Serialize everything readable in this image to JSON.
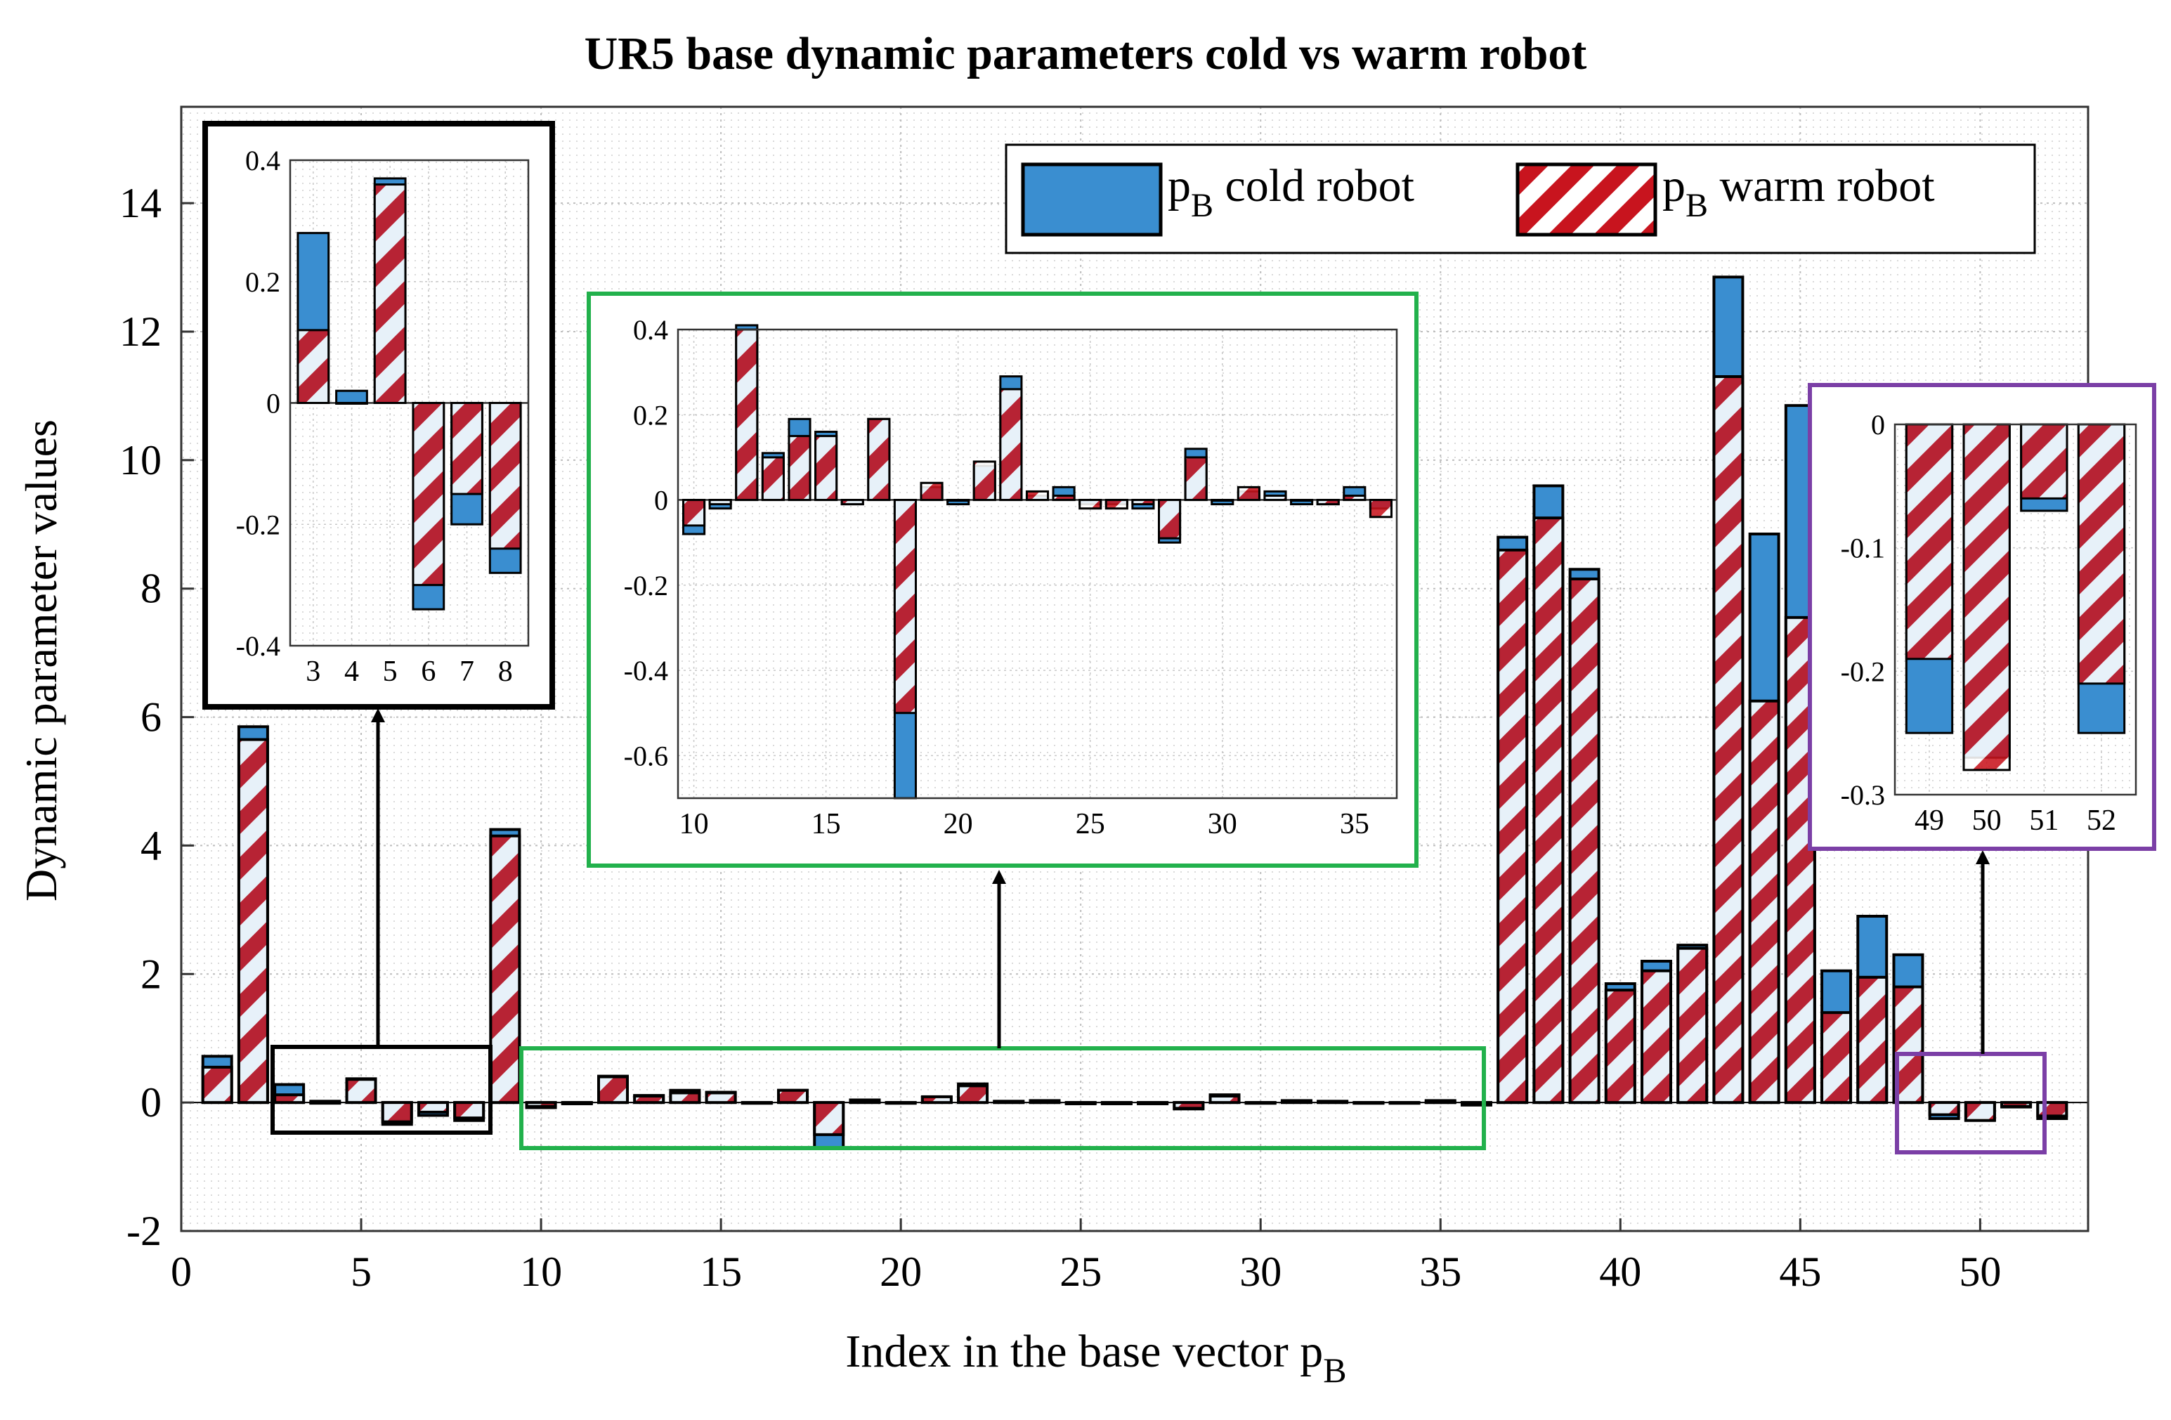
{
  "chart_data": {
    "type": "bar",
    "title": "UR5 base dynamic parameters cold vs warm robot",
    "xlabel": "Index in the base vector p",
    "xlabel_sub": "B",
    "ylabel": "Dynamic parameter values",
    "xlim": [
      0,
      53
    ],
    "ylim": [
      -2,
      15.5
    ],
    "xticks": [
      0,
      5,
      10,
      15,
      20,
      25,
      30,
      35,
      40,
      45,
      50
    ],
    "yticks": [
      -2,
      0,
      2,
      4,
      6,
      8,
      10,
      12,
      14
    ],
    "grid": true,
    "legend_position": "top-right",
    "colors": {
      "cold": "#3a8ed0",
      "warm_stripe": "#c8141e",
      "warm_bg": "#ffffff"
    },
    "x": [
      1,
      2,
      3,
      4,
      5,
      6,
      7,
      8,
      9,
      10,
      11,
      12,
      13,
      14,
      15,
      16,
      17,
      18,
      19,
      20,
      21,
      22,
      23,
      24,
      25,
      26,
      27,
      28,
      29,
      30,
      31,
      32,
      33,
      34,
      35,
      36,
      37,
      38,
      39,
      40,
      41,
      42,
      43,
      44,
      45,
      46,
      47,
      48,
      49,
      50,
      51,
      52
    ],
    "series": [
      {
        "name": "p",
        "name_sub": "B",
        "name_suffix": " cold robot",
        "values": [
          0.72,
          5.85,
          0.28,
          0.02,
          0.37,
          -0.34,
          -0.2,
          -0.28,
          4.25,
          -0.08,
          -0.02,
          0.41,
          0.11,
          0.19,
          0.16,
          -0.01,
          0.19,
          -0.7,
          0.03,
          -0.01,
          0.08,
          0.29,
          0.01,
          0.03,
          -0.01,
          -0.01,
          -0.02,
          -0.1,
          0.12,
          -0.01,
          0.02,
          0.02,
          -0.01,
          -0.01,
          0.03,
          -0.02,
          8.8,
          9.6,
          8.3,
          1.85,
          2.2,
          2.45,
          12.85,
          8.85,
          10.85,
          2.05,
          2.9,
          2.3,
          -0.25,
          -0.27,
          -0.07,
          -0.25
        ]
      },
      {
        "name": "p",
        "name_sub": "B",
        "name_suffix": " warm robot",
        "values": [
          0.55,
          5.65,
          0.12,
          0.0,
          0.36,
          -0.3,
          -0.15,
          -0.24,
          4.15,
          -0.06,
          -0.01,
          0.4,
          0.1,
          0.15,
          0.15,
          -0.01,
          0.19,
          -0.5,
          0.04,
          0.0,
          0.09,
          0.26,
          0.02,
          0.01,
          -0.02,
          -0.02,
          -0.01,
          -0.09,
          0.1,
          0.0,
          0.03,
          0.01,
          0.0,
          -0.01,
          0.01,
          -0.04,
          8.6,
          9.1,
          8.15,
          1.75,
          2.05,
          2.4,
          11.3,
          6.25,
          7.55,
          1.4,
          1.95,
          1.8,
          -0.19,
          -0.28,
          -0.06,
          -0.21
        ]
      }
    ],
    "insets": [
      {
        "x_range": [
          3,
          8
        ],
        "xticks": [
          3,
          4,
          5,
          6,
          7,
          8
        ],
        "ylim": [
          -0.4,
          0.4
        ],
        "yticks": [
          "0.4",
          "0.2",
          "0",
          "-0.2",
          "-0.4"
        ],
        "ytick_values": [
          0.4,
          0.2,
          0,
          -0.2,
          -0.4
        ]
      },
      {
        "x_range": [
          10,
          36
        ],
        "xticks": [
          10,
          15,
          20,
          25,
          30,
          35
        ],
        "ylim": [
          -0.7,
          0.4
        ],
        "yticks": [
          "0.4",
          "0.2",
          "0",
          "-0.2",
          "-0.4",
          "-0.6"
        ],
        "ytick_values": [
          0.4,
          0.2,
          0,
          -0.2,
          -0.4,
          -0.6
        ]
      },
      {
        "x_range": [
          49,
          52
        ],
        "xticks": [
          49,
          50,
          51,
          52
        ],
        "ylim": [
          -0.3,
          0
        ],
        "yticks": [
          "0",
          "-0.1",
          "-0.2",
          "-0.3"
        ],
        "ytick_values": [
          0,
          -0.1,
          -0.2,
          -0.3
        ]
      }
    ]
  }
}
